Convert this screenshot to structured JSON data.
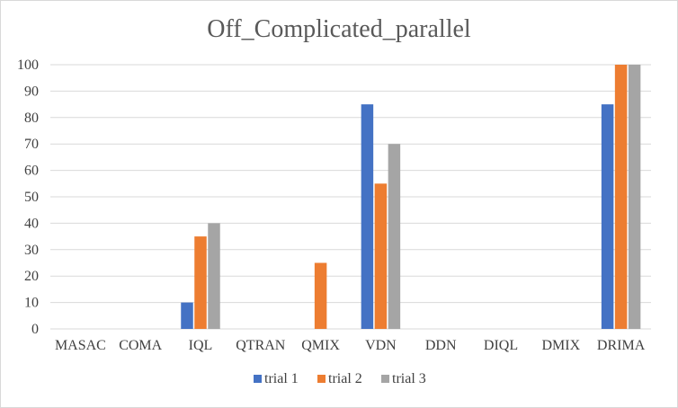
{
  "chart_data": {
    "type": "bar",
    "title": "Off_Complicated_parallel",
    "categories": [
      "MASAC",
      "COMA",
      "IQL",
      "QTRAN",
      "QMIX",
      "VDN",
      "DDN",
      "DIQL",
      "DMIX",
      "DRIMA"
    ],
    "series": [
      {
        "name": "trial 1",
        "color": "#4472c4",
        "values": [
          0,
          0,
          10,
          0,
          0,
          85,
          0,
          0,
          0,
          85
        ]
      },
      {
        "name": "trial 2",
        "color": "#ed7d31",
        "values": [
          0,
          0,
          35,
          0,
          25,
          55,
          0,
          0,
          0,
          100
        ]
      },
      {
        "name": "trial 3",
        "color": "#a5a5a5",
        "values": [
          0,
          0,
          40,
          0,
          0,
          70,
          0,
          0,
          0,
          100
        ]
      }
    ],
    "ylim": [
      0,
      100
    ],
    "yticks": [
      "0",
      "10",
      "20",
      "30",
      "40",
      "50",
      "60",
      "70",
      "80",
      "90",
      "100"
    ],
    "xlabel": "",
    "ylabel": "",
    "grid": true,
    "legend_position": "bottom"
  }
}
